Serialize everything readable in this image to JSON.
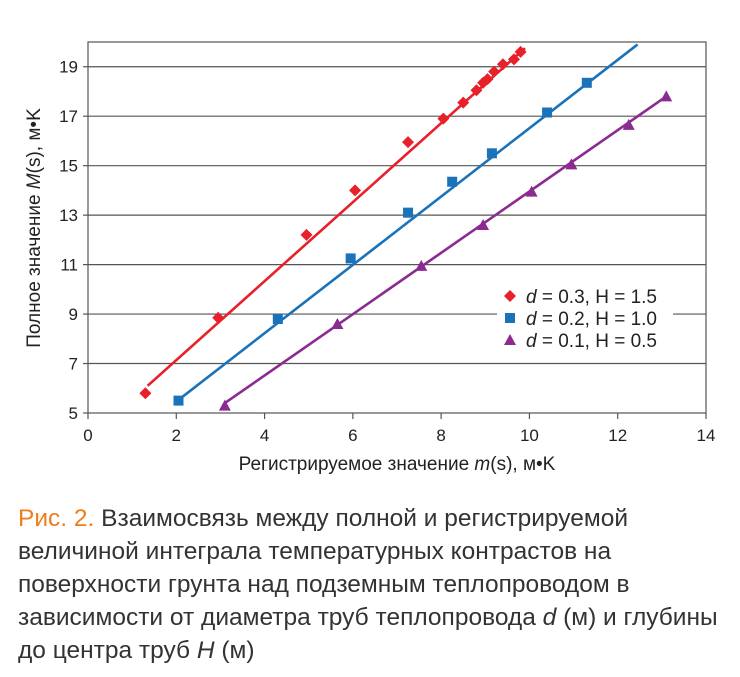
{
  "chart_data": {
    "type": "scatter",
    "xlabel_pre": "Регистрируемое значение ",
    "xlabel_var": "m",
    "xlabel_post": "(s), м•K",
    "ylabel_pre": "Полное значение ",
    "ylabel_var": "M",
    "ylabel_post": "(s), м•K",
    "xlim": [
      0,
      14
    ],
    "ylim": [
      5,
      20
    ],
    "xticks": [
      0,
      2,
      4,
      6,
      8,
      10,
      12,
      14
    ],
    "yticks": [
      5,
      7,
      9,
      11,
      13,
      15,
      17,
      19
    ],
    "grid": "horizontal",
    "legend_position": "right-middle",
    "series": [
      {
        "name_var": "d",
        "name_rest": " = 0.3, H = 1.5",
        "color": "#e8202a",
        "marker": "diamond",
        "x": [
          1.3,
          2.95,
          4.95,
          6.05,
          7.25,
          8.05,
          8.5,
          8.8,
          8.95,
          9.05,
          9.2,
          9.4,
          9.65,
          9.8
        ],
        "y": [
          5.8,
          8.85,
          12.2,
          14.0,
          15.95,
          16.9,
          17.55,
          18.05,
          18.35,
          18.5,
          18.8,
          19.1,
          19.3,
          19.6
        ],
        "trend": [
          [
            1.35,
            6.1
          ],
          [
            9.9,
            19.75
          ]
        ]
      },
      {
        "name_var": "d",
        "name_rest": " = 0.2, H = 1.0",
        "color": "#1a72b9",
        "marker": "square",
        "x": [
          2.05,
          4.3,
          5.95,
          7.25,
          8.25,
          9.15,
          10.4,
          11.3
        ],
        "y": [
          5.5,
          8.8,
          11.25,
          13.1,
          14.35,
          15.5,
          17.15,
          18.35
        ],
        "trend": [
          [
            2.1,
            5.6
          ],
          [
            12.45,
            19.9
          ]
        ]
      },
      {
        "name_var": "d",
        "name_rest": " = 0.1, H = 0.5",
        "color": "#8b2a91",
        "marker": "triangle",
        "x": [
          3.1,
          5.65,
          7.55,
          8.95,
          10.05,
          10.95,
          12.25,
          13.1
        ],
        "y": [
          5.3,
          8.6,
          10.95,
          12.6,
          13.95,
          15.05,
          16.65,
          17.8
        ],
        "trend": [
          [
            3.1,
            5.4
          ],
          [
            13.1,
            17.8
          ]
        ]
      }
    ]
  },
  "caption": {
    "label": "Рис. 2.",
    "text_1": " Взаимосвязь между полной и регистрируемой величиной интеграла температурных контрастов на поверхности грунта над подземным теплопроводом в зависимости от диаметра труб теплопровода ",
    "var_d": "d",
    "text_2": " (м) и глубины до центра труб ",
    "var_H": "H",
    "text_3": " (м)"
  }
}
